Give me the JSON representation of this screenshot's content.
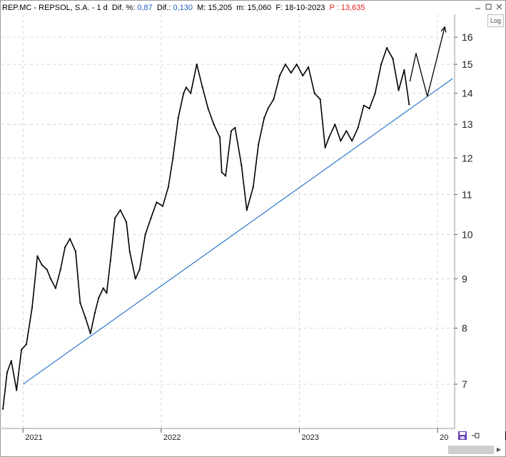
{
  "header": {
    "symbol": "REP.MC - REPSOL,  S.A.  -  1 d",
    "dif_pct_label": "Dif. %:",
    "dif_pct_value": "0,87",
    "dif_label": "Dif.:",
    "dif_value": "0,130",
    "max_label": "M:",
    "max_value": "15,205",
    "min_label": "m:",
    "min_value": "15,060",
    "date_label": "F:",
    "date_value": "18-10-2023",
    "price_label": "P :",
    "price_value": "13,635"
  },
  "window": {
    "min_icon": "minimize-icon",
    "max_icon": "maximize-icon",
    "close_icon": "close-icon"
  },
  "log_button": "Log",
  "colors": {
    "price": "#000000",
    "trendline": "#1f6fc8",
    "grid": "#d6d6d6",
    "header_blue": "#1f5fbf",
    "header_red": "#e0201c"
  },
  "footer": {
    "save_icon": "save-icon",
    "pin_icon": "pin-icon",
    "color_icon": "black-square-icon"
  },
  "chart_data": {
    "type": "line",
    "title": "",
    "xlabel": "",
    "ylabel": "",
    "y_scale": "log",
    "yticks": [
      7,
      8,
      9,
      10,
      11,
      12,
      13,
      14,
      15,
      16
    ],
    "ylim": [
      6.3,
      16.9
    ],
    "xticks": [
      {
        "label": "2021",
        "x": "2021-01-01"
      },
      {
        "label": "2022",
        "x": "2022-01-01"
      },
      {
        "label": "2023",
        "x": "2023-01-01"
      },
      {
        "label": "20",
        "x": "2024-01-01"
      }
    ],
    "xlim": [
      "2020-11-05",
      "2024-02-15"
    ],
    "grid": true,
    "series": [
      {
        "name": "",
        "x": [
          "2020-11-09",
          "2020-11-20",
          "2020-12-01",
          "2020-12-15",
          "2020-12-28",
          "2021-01-10",
          "2021-01-25",
          "2021-02-08",
          "2021-02-20",
          "2021-03-05",
          "2021-03-15",
          "2021-03-28",
          "2021-04-10",
          "2021-04-22",
          "2021-05-05",
          "2021-05-20",
          "2021-06-01",
          "2021-06-15",
          "2021-06-28",
          "2021-07-10",
          "2021-07-20",
          "2021-08-01",
          "2021-08-10",
          "2021-08-20",
          "2021-09-01",
          "2021-09-15",
          "2021-10-01",
          "2021-10-10",
          "2021-10-25",
          "2021-11-05",
          "2021-11-20",
          "2021-12-05",
          "2021-12-20",
          "2022-01-05",
          "2022-01-20",
          "2022-02-01",
          "2022-02-15",
          "2022-03-01",
          "2022-03-08",
          "2022-03-20",
          "2022-04-05",
          "2022-04-20",
          "2022-05-05",
          "2022-05-20",
          "2022-06-05",
          "2022-06-10",
          "2022-06-20",
          "2022-07-05",
          "2022-07-15",
          "2022-08-01",
          "2022-08-15",
          "2022-09-01",
          "2022-09-15",
          "2022-09-30",
          "2022-10-10",
          "2022-10-25",
          "2022-11-10",
          "2022-11-25",
          "2022-12-10",
          "2022-12-25",
          "2023-01-10",
          "2023-01-25",
          "2023-02-10",
          "2023-02-25",
          "2023-03-10",
          "2023-03-20",
          "2023-04-05",
          "2023-04-20",
          "2023-05-05",
          "2023-05-20",
          "2023-06-05",
          "2023-06-20",
          "2023-07-05",
          "2023-07-20",
          "2023-08-05",
          "2023-08-20",
          "2023-09-05",
          "2023-09-20",
          "2023-10-05",
          "2023-10-18"
        ],
        "values": [
          6.6,
          7.2,
          7.4,
          6.9,
          7.6,
          7.7,
          8.4,
          9.5,
          9.3,
          9.2,
          9.0,
          8.8,
          9.2,
          9.7,
          9.9,
          9.6,
          8.5,
          8.2,
          7.9,
          8.3,
          8.6,
          8.8,
          8.7,
          9.4,
          10.4,
          10.6,
          10.3,
          9.6,
          9.0,
          9.2,
          10.0,
          10.4,
          10.8,
          10.7,
          11.2,
          12.0,
          13.2,
          14.0,
          14.2,
          14.0,
          15.0,
          14.2,
          13.5,
          13.0,
          12.6,
          11.6,
          11.5,
          12.8,
          12.9,
          11.8,
          10.6,
          11.2,
          12.4,
          13.2,
          13.5,
          13.8,
          14.6,
          15.0,
          14.7,
          15.0,
          14.6,
          14.9,
          14.0,
          13.8,
          12.3,
          12.6,
          13.0,
          12.5,
          12.8,
          12.5,
          12.9,
          13.6,
          13.5,
          14.0,
          15.0,
          15.6,
          15.2,
          14.1,
          14.8,
          13.635
        ]
      },
      {
        "name": "",
        "x": [
          "2021-01-01",
          "2024-02-10"
        ],
        "values": [
          7.0,
          14.5
        ]
      },
      {
        "name": "",
        "x": [
          "2023-10-20",
          "2023-11-05",
          "2023-12-05",
          "2024-01-20"
        ],
        "values": [
          14.4,
          15.4,
          13.9,
          16.4
        ]
      }
    ]
  }
}
